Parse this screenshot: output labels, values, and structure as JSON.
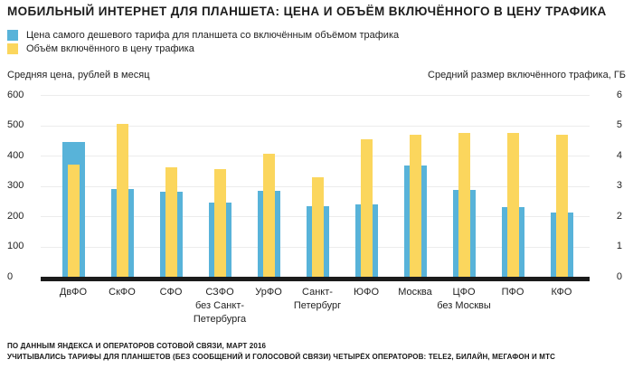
{
  "title": "МОБИЛЬНЫЙ ИНТЕРНЕТ ДЛЯ ПЛАНШЕТА: ЦЕНА И ОБЪЁМ ВКЛЮЧЁННОГО В ЦЕНУ ТРАФИКА",
  "colors": {
    "price_bar": "#58b3d9",
    "volume_bar": "#fbd65d",
    "gridline": "#ececec",
    "baseline": "#1b1b1b"
  },
  "legend": {
    "items": [
      {
        "label": "Цена самого дешевого тарифа для планшета со включённым объёмом трафика",
        "color": "#58b3d9"
      },
      {
        "label": "Объём включённого в цену трафика",
        "color": "#fbd65d"
      }
    ]
  },
  "axes": {
    "left_title": "Средняя цена, рублей в месяц",
    "right_title": "Средний размер включённого трафика, ГБ"
  },
  "chart_data": {
    "type": "bar",
    "title": "МОБИЛЬНЫЙ ИНТЕРНЕТ ДЛЯ ПЛАНШЕТА: ЦЕНА И ОБЪЁМ ВКЛЮЧЁННОГО В ЦЕНУ ТРАФИКА",
    "categories": [
      "ДвФО",
      "СкФО",
      "СФО",
      "СЗФО без Санкт-Петербурга",
      "УрФО",
      "Санкт-Петербург",
      "ЮФО",
      "Москва",
      "ЦФО без Москвы",
      "ПФО",
      "КФО"
    ],
    "category_lines": [
      [
        "ДвФО"
      ],
      [
        "СкФО"
      ],
      [
        "СФО"
      ],
      [
        "СЗФО",
        "без Санкт-",
        "Петербурга"
      ],
      [
        "УрФО"
      ],
      [
        "Санкт-",
        "Петербург"
      ],
      [
        "ЮФО"
      ],
      [
        "Москва"
      ],
      [
        "ЦФО",
        "без Москвы"
      ],
      [
        "ПФО"
      ],
      [
        "КФО"
      ]
    ],
    "series": [
      {
        "name": "Цена самого дешевого тарифа для планшета со включённым объёмом трафика",
        "axis": "left",
        "unit": "рублей в месяц",
        "color": "#58b3d9",
        "values": [
          445,
          290,
          280,
          245,
          283,
          232,
          240,
          367,
          286,
          230,
          213
        ]
      },
      {
        "name": "Объём включённого в цену трафика",
        "axis": "right",
        "unit": "ГБ",
        "color": "#fbd65d",
        "values": [
          3.7,
          5.05,
          3.6,
          3.55,
          4.05,
          3.3,
          4.55,
          4.7,
          4.75,
          4.75,
          4.7
        ]
      }
    ],
    "left_axis": {
      "label": "Средняя цена, рублей в месяц",
      "range": [
        0,
        600
      ],
      "ticks": [
        0,
        100,
        200,
        300,
        400,
        500,
        600
      ]
    },
    "right_axis": {
      "label": "Средний размер включённого трафика, ГБ",
      "range": [
        0,
        6
      ],
      "ticks": [
        0,
        1,
        2,
        3,
        4,
        5,
        6
      ]
    },
    "grid": true,
    "legend_position": "top-left"
  },
  "footer": {
    "line1": "ПО ДАННЫМ ЯНДЕКСА И ОПЕРАТОРОВ СОТОВОЙ СВЯЗИ, МАРТ 2016",
    "line2": "УЧИТЫВАЛИСЬ ТАРИФЫ ДЛЯ ПЛАНШЕТОВ (БЕЗ СООБЩЕНИЙ И ГОЛОСОВОЙ СВЯЗИ) ЧЕТЫРЁХ ОПЕРАТОРОВ: TELE2, БИЛАЙН, МЕГАФОН И МТС"
  }
}
